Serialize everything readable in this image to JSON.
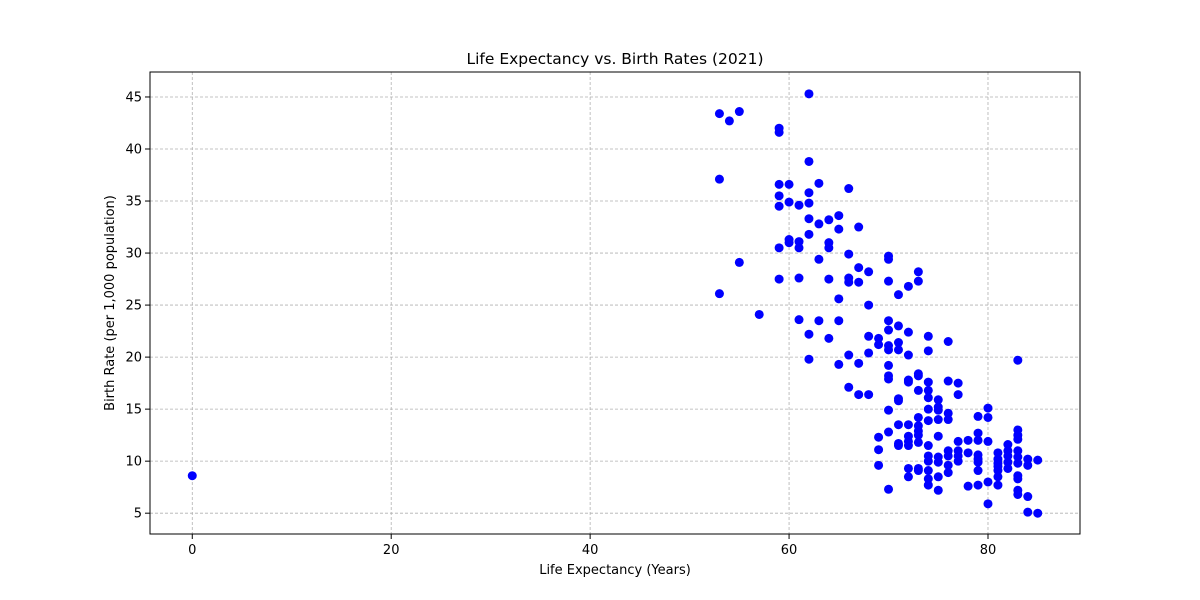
{
  "chart_data": {
    "type": "scatter",
    "title": "Life Expectancy vs. Birth Rates (2021)",
    "xlabel": "Life Expectancy (Years)",
    "ylabel": "Birth Rate (per 1,000 population)",
    "xlim": [
      -4.25,
      89.25
    ],
    "ylim": [
      3.0,
      47.4
    ],
    "xticks": [
      0,
      20,
      40,
      60,
      80
    ],
    "yticks": [
      5,
      10,
      15,
      20,
      25,
      30,
      35,
      40,
      45
    ],
    "grid": true,
    "marker_color": "#0000ff",
    "points": [
      [
        0,
        8.6
      ],
      [
        53,
        43.4
      ],
      [
        54,
        42.7
      ],
      [
        55,
        43.6
      ],
      [
        53,
        37.1
      ],
      [
        53,
        26.1
      ],
      [
        55,
        29.1
      ],
      [
        57,
        24.1
      ],
      [
        59,
        42.0
      ],
      [
        59,
        41.6
      ],
      [
        59,
        36.6
      ],
      [
        59,
        35.5
      ],
      [
        59,
        34.5
      ],
      [
        59,
        30.5
      ],
      [
        59,
        27.5
      ],
      [
        60,
        36.6
      ],
      [
        60,
        34.9
      ],
      [
        60,
        31.3
      ],
      [
        60,
        31.0
      ],
      [
        61,
        34.6
      ],
      [
        61,
        31.1
      ],
      [
        61,
        30.5
      ],
      [
        61,
        27.6
      ],
      [
        61,
        23.6
      ],
      [
        62,
        45.3
      ],
      [
        62,
        38.8
      ],
      [
        62,
        35.8
      ],
      [
        62,
        34.8
      ],
      [
        62,
        33.3
      ],
      [
        62,
        31.8
      ],
      [
        62,
        22.2
      ],
      [
        62,
        19.8
      ],
      [
        63,
        36.7
      ],
      [
        63,
        32.8
      ],
      [
        63,
        29.4
      ],
      [
        63,
        23.5
      ],
      [
        64,
        33.2
      ],
      [
        64,
        31.0
      ],
      [
        64,
        30.5
      ],
      [
        64,
        27.5
      ],
      [
        64,
        21.8
      ],
      [
        65,
        33.6
      ],
      [
        65,
        32.3
      ],
      [
        65,
        25.6
      ],
      [
        65,
        23.5
      ],
      [
        65,
        19.3
      ],
      [
        66,
        36.2
      ],
      [
        66,
        29.9
      ],
      [
        66,
        27.6
      ],
      [
        66,
        27.2
      ],
      [
        66,
        20.2
      ],
      [
        66,
        17.1
      ],
      [
        67,
        32.5
      ],
      [
        67,
        28.6
      ],
      [
        67,
        27.2
      ],
      [
        67,
        19.4
      ],
      [
        67,
        16.4
      ],
      [
        68,
        28.2
      ],
      [
        68,
        25.0
      ],
      [
        68,
        22.0
      ],
      [
        68,
        20.4
      ],
      [
        68,
        16.4
      ],
      [
        69,
        21.8
      ],
      [
        69,
        21.2
      ],
      [
        69,
        12.3
      ],
      [
        69,
        11.1
      ],
      [
        69,
        9.6
      ],
      [
        70,
        29.7
      ],
      [
        70,
        29.4
      ],
      [
        70,
        27.3
      ],
      [
        70,
        23.5
      ],
      [
        70,
        22.6
      ],
      [
        70,
        21.1
      ],
      [
        70,
        20.7
      ],
      [
        70,
        19.2
      ],
      [
        70,
        18.2
      ],
      [
        70,
        17.9
      ],
      [
        70,
        14.9
      ],
      [
        70,
        12.8
      ],
      [
        70,
        7.3
      ],
      [
        71,
        26.0
      ],
      [
        71,
        23.0
      ],
      [
        71,
        21.4
      ],
      [
        71,
        20.7
      ],
      [
        71,
        16.0
      ],
      [
        71,
        15.8
      ],
      [
        71,
        13.5
      ],
      [
        71,
        11.7
      ],
      [
        71,
        11.5
      ],
      [
        72,
        26.8
      ],
      [
        72,
        22.4
      ],
      [
        72,
        20.2
      ],
      [
        72,
        17.8
      ],
      [
        72,
        17.6
      ],
      [
        72,
        13.5
      ],
      [
        72,
        12.4
      ],
      [
        72,
        11.9
      ],
      [
        72,
        11.5
      ],
      [
        72,
        9.3
      ],
      [
        72,
        8.5
      ],
      [
        73,
        28.2
      ],
      [
        73,
        27.3
      ],
      [
        73,
        18.4
      ],
      [
        73,
        18.2
      ],
      [
        73,
        16.8
      ],
      [
        73,
        14.2
      ],
      [
        73,
        13.4
      ],
      [
        73,
        12.9
      ],
      [
        73,
        12.5
      ],
      [
        73,
        11.8
      ],
      [
        73,
        9.3
      ],
      [
        73,
        9.1
      ],
      [
        74,
        22.0
      ],
      [
        74,
        20.6
      ],
      [
        74,
        17.6
      ],
      [
        74,
        16.8
      ],
      [
        74,
        16.1
      ],
      [
        74,
        15.0
      ],
      [
        74,
        13.9
      ],
      [
        74,
        11.5
      ],
      [
        74,
        10.5
      ],
      [
        74,
        10.0
      ],
      [
        74,
        9.1
      ],
      [
        74,
        8.3
      ],
      [
        74,
        7.7
      ],
      [
        75,
        15.9
      ],
      [
        75,
        15.2
      ],
      [
        75,
        14.9
      ],
      [
        75,
        14.0
      ],
      [
        75,
        12.4
      ],
      [
        75,
        10.4
      ],
      [
        75,
        9.9
      ],
      [
        75,
        8.5
      ],
      [
        75,
        7.2
      ],
      [
        76,
        21.5
      ],
      [
        76,
        17.7
      ],
      [
        76,
        14.6
      ],
      [
        76,
        14.0
      ],
      [
        76,
        11.0
      ],
      [
        76,
        10.5
      ],
      [
        76,
        9.6
      ],
      [
        76,
        8.9
      ],
      [
        77,
        17.5
      ],
      [
        77,
        16.4
      ],
      [
        77,
        11.9
      ],
      [
        77,
        11.0
      ],
      [
        77,
        10.5
      ],
      [
        77,
        10.0
      ],
      [
        78,
        12.0
      ],
      [
        78,
        10.8
      ],
      [
        78,
        7.6
      ],
      [
        79,
        14.3
      ],
      [
        79,
        12.7
      ],
      [
        79,
        12.0
      ],
      [
        79,
        10.6
      ],
      [
        79,
        10.2
      ],
      [
        79,
        9.9
      ],
      [
        79,
        9.1
      ],
      [
        79,
        7.7
      ],
      [
        80,
        15.1
      ],
      [
        80,
        14.2
      ],
      [
        80,
        11.9
      ],
      [
        80,
        8.0
      ],
      [
        80,
        5.9
      ],
      [
        81,
        10.8
      ],
      [
        81,
        10.2
      ],
      [
        81,
        9.8
      ],
      [
        81,
        9.5
      ],
      [
        81,
        9.1
      ],
      [
        81,
        8.5
      ],
      [
        81,
        7.7
      ],
      [
        82,
        11.6
      ],
      [
        82,
        11.0
      ],
      [
        82,
        10.5
      ],
      [
        82,
        9.9
      ],
      [
        82,
        9.3
      ],
      [
        83,
        19.7
      ],
      [
        83,
        13.0
      ],
      [
        83,
        12.5
      ],
      [
        83,
        12.1
      ],
      [
        83,
        11.0
      ],
      [
        83,
        10.4
      ],
      [
        83,
        9.8
      ],
      [
        83,
        8.6
      ],
      [
        83,
        8.3
      ],
      [
        83,
        7.2
      ],
      [
        83,
        6.8
      ],
      [
        84,
        10.2
      ],
      [
        84,
        9.6
      ],
      [
        84,
        6.6
      ],
      [
        84,
        5.1
      ],
      [
        85,
        10.1
      ],
      [
        85,
        5.0
      ]
    ]
  }
}
